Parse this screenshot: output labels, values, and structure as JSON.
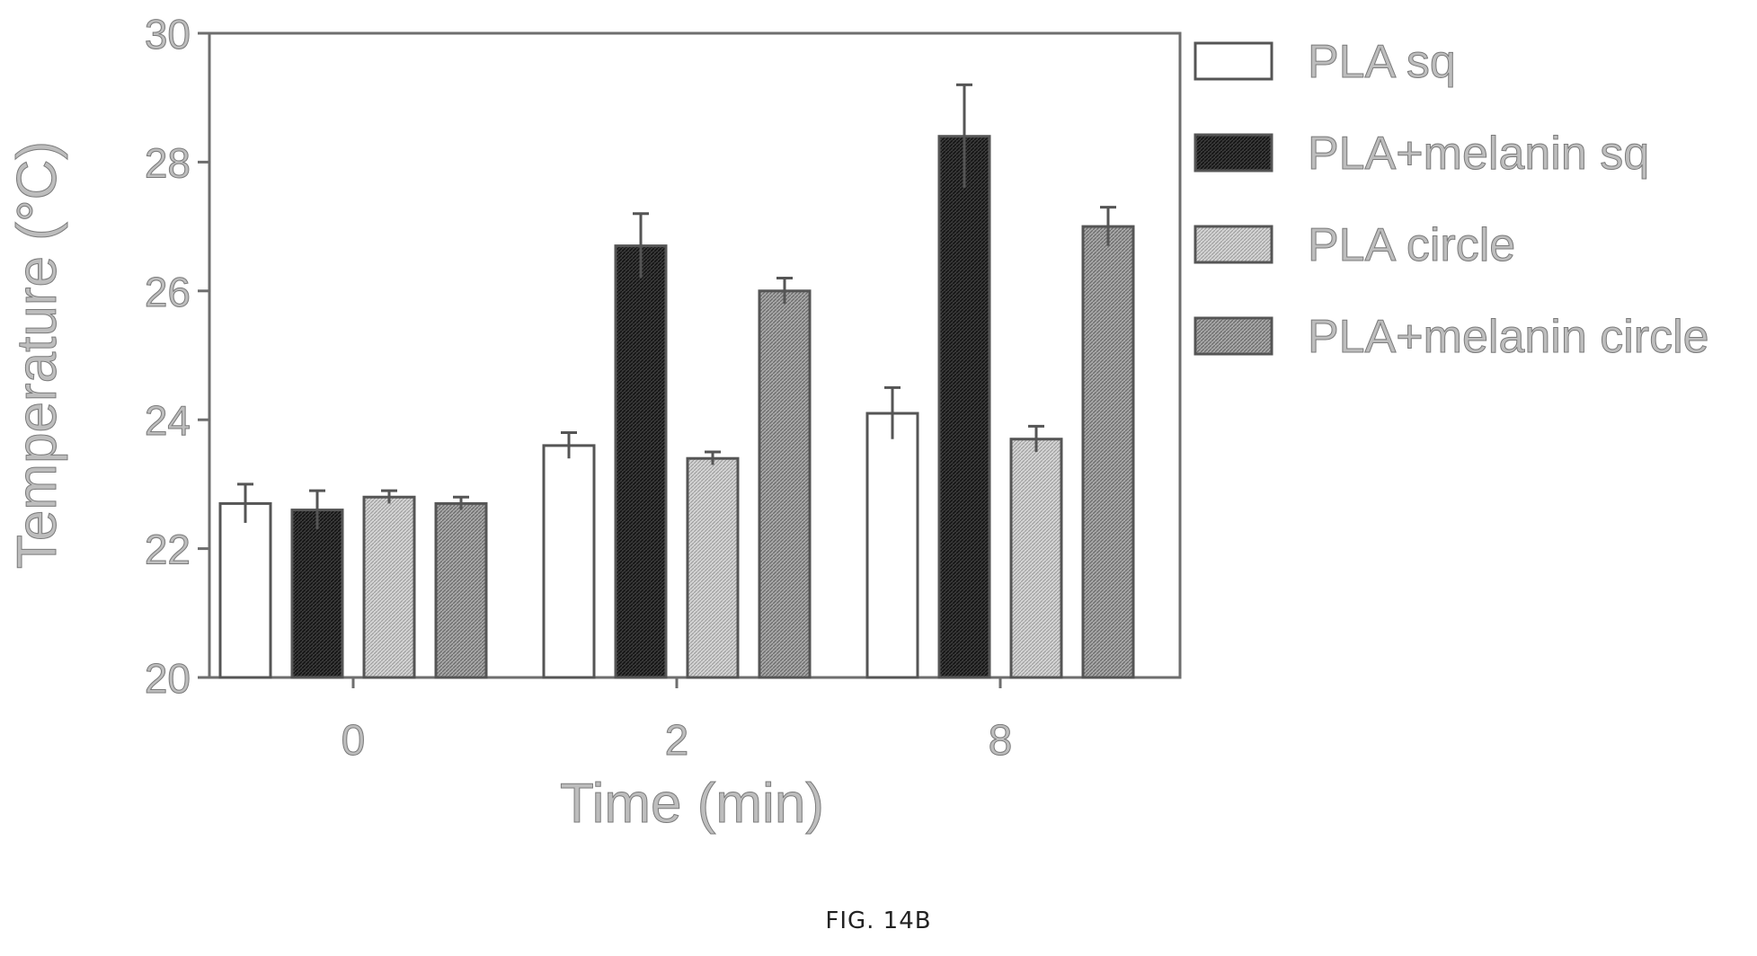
{
  "figure": {
    "caption": "FIG. 14B"
  },
  "chart_data": {
    "type": "bar",
    "xlabel": "Time (min)",
    "ylabel": "Temperature (°C)",
    "categories": [
      "0",
      "2",
      "8"
    ],
    "ylim": [
      20,
      30
    ],
    "yticks": [
      "20",
      "22",
      "24",
      "26",
      "28",
      "30"
    ],
    "grid": false,
    "legend_position": "right",
    "series": [
      {
        "name": "PLA sq",
        "values": [
          22.7,
          23.6,
          24.1
        ],
        "errors": [
          0.3,
          0.2,
          0.4
        ],
        "fill": "#ffffff",
        "pattern": "none"
      },
      {
        "name": "PLA+melanin sq",
        "values": [
          22.6,
          26.7,
          28.4
        ],
        "errors": [
          0.3,
          0.5,
          0.8
        ],
        "fill": "#2e2e2e",
        "pattern": "dense-dark"
      },
      {
        "name": "PLA circle",
        "values": [
          22.8,
          23.4,
          23.7
        ],
        "errors": [
          0.1,
          0.1,
          0.2
        ],
        "fill": "#c8c8c8",
        "pattern": "light"
      },
      {
        "name": "PLA+melanin circle",
        "values": [
          22.7,
          26.0,
          27.0
        ],
        "errors": [
          0.1,
          0.2,
          0.3
        ],
        "fill": "#8c8c8c",
        "pattern": "medium"
      }
    ]
  }
}
